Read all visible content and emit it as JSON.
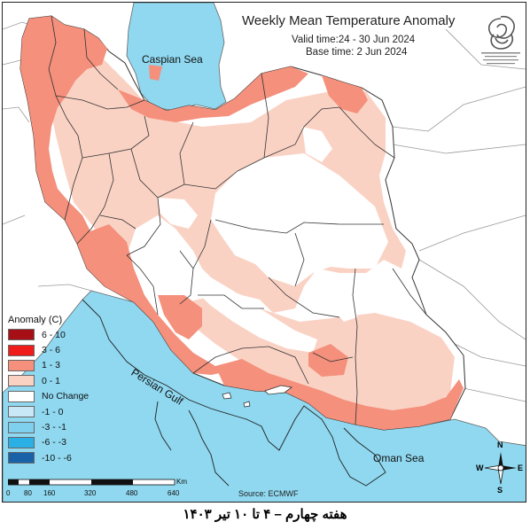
{
  "header": {
    "title": "Weekly Mean Temperature Anomaly",
    "valid_time": "Valid time:24 - 30 Jun 2024",
    "base_time": "Base time: 2 Jun 2024"
  },
  "legend": {
    "title": "Anomaly (C)",
    "items": [
      {
        "label": "6 - 10",
        "color": "#a50f15"
      },
      {
        "label": "3 - 6",
        "color": "#ef1c1c"
      },
      {
        "label": "1 - 3",
        "color": "#f4907c"
      },
      {
        "label": "0 - 1",
        "color": "#fad2c4"
      },
      {
        "label": "No Change",
        "color": "#ffffff"
      },
      {
        "label": "-1 - 0",
        "color": "#c8e8f8"
      },
      {
        "label": "-3 - -1",
        "color": "#7fd0ef"
      },
      {
        "label": "-6 - -3",
        "color": "#2bb0e6"
      },
      {
        "label": "-10 - -6",
        "color": "#1a62a8"
      }
    ]
  },
  "scale": {
    "unit": "Km",
    "ticks": [
      "0",
      "80",
      "160",
      "320",
      "480",
      "640"
    ]
  },
  "labels": {
    "caspian": "Caspian Sea",
    "persian_gulf": "Persian Gulf",
    "oman": "Oman Sea",
    "source": "Source: ECMWF"
  },
  "compass": {
    "n": "N",
    "s": "S",
    "e": "E",
    "w": "W"
  },
  "colors": {
    "sea": "#8fd8f0",
    "land": "#ffffff",
    "border": "#333333"
  },
  "caption": "هفته چهارم – ۴ تا ۱۰ تیر ۱۴۰۳"
}
